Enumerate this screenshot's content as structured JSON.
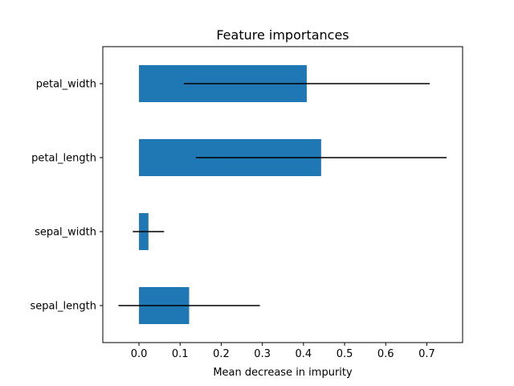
{
  "chart_data": {
    "type": "bar",
    "orientation": "horizontal",
    "title": "Feature importances",
    "xlabel": "Mean decrease in impurity",
    "ylabel": "",
    "categories": [
      "sepal_length",
      "sepal_width",
      "petal_length",
      "petal_width"
    ],
    "values": [
      0.122,
      0.023,
      0.443,
      0.408
    ],
    "errors": [
      0.172,
      0.038,
      0.305,
      0.299
    ],
    "xlim": [
      -0.088,
      0.787
    ],
    "xticks": [
      0.0,
      0.1,
      0.2,
      0.3,
      0.4,
      0.5,
      0.6,
      0.7
    ],
    "xtick_labels": [
      "0.0",
      "0.1",
      "0.2",
      "0.3",
      "0.4",
      "0.5",
      "0.6",
      "0.7"
    ],
    "grid": false,
    "bar_color": "#1f77b4",
    "error_color": "#000000"
  }
}
